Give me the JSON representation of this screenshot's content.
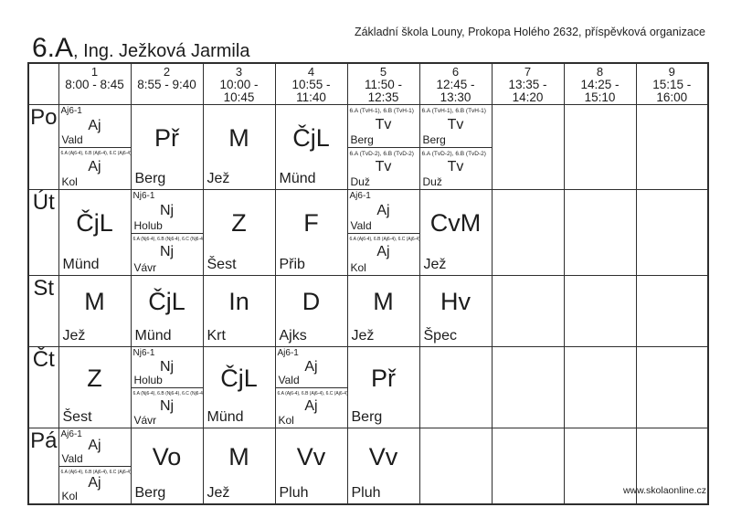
{
  "page": {
    "school_header": "Základní škola Louny, Prokopa Holého 2632, příspěvková organizace",
    "class_name": "6.A",
    "class_teacher_suffix": ", Ing. Ježková Jarmila",
    "website": "www.skolaonline.cz"
  },
  "timetable": {
    "periods": [
      {
        "num": "1",
        "time": "8:00 - 8:45"
      },
      {
        "num": "2",
        "time": "8:55 - 9:40"
      },
      {
        "num": "3",
        "time": "10:00 - 10:45"
      },
      {
        "num": "4",
        "time": "10:55 - 11:40"
      },
      {
        "num": "5",
        "time": "11:50 - 12:35"
      },
      {
        "num": "6",
        "time": "12:45 - 13:30"
      },
      {
        "num": "7",
        "time": "13:35 - 14:20"
      },
      {
        "num": "8",
        "time": "14:25 - 15:10"
      },
      {
        "num": "9",
        "time": "15:15 - 16:00"
      }
    ],
    "days": [
      {
        "label": "Po",
        "cells": [
          {
            "type": "split",
            "top": {
              "group": "Aj6-1",
              "subject": "Aj",
              "teacher": "Vald"
            },
            "bottom": {
              "group": "6.A (Aj6-4), 6.B (Aj6-4), 6.C (Aj6-4)",
              "subject": "Aj",
              "teacher": "Kol"
            }
          },
          {
            "type": "single",
            "subject": "Př",
            "teacher": "Berg"
          },
          {
            "type": "single",
            "subject": "M",
            "teacher": "Jež"
          },
          {
            "type": "single",
            "subject": "ČjL",
            "teacher": "Münd"
          },
          {
            "type": "split",
            "top": {
              "group": "6.A (TvH-1), 6.B (TvH-1)",
              "subject": "Tv",
              "teacher": "Berg"
            },
            "bottom": {
              "group": "6.A (TvD-2), 6.B (TvD-2)",
              "subject": "Tv",
              "teacher": "Duž"
            }
          },
          {
            "type": "split",
            "top": {
              "group": "6.A (TvH-1), 6.B (TvH-1)",
              "subject": "Tv",
              "teacher": "Berg"
            },
            "bottom": {
              "group": "6.A (TvD-2), 6.B (TvD-2)",
              "subject": "Tv",
              "teacher": "Duž"
            }
          },
          {
            "type": "empty"
          },
          {
            "type": "empty"
          },
          {
            "type": "empty"
          }
        ]
      },
      {
        "label": "Út",
        "cells": [
          {
            "type": "single",
            "subject": "ČjL",
            "teacher": "Münd"
          },
          {
            "type": "split",
            "top": {
              "group": "Nj6-1",
              "subject": "Nj",
              "teacher": "Holub"
            },
            "bottom": {
              "group": "6.A (Nj6-4), 6.B (Nj6-4), 6.C (Nj6-4)",
              "subject": "Nj",
              "teacher": "Vávr"
            }
          },
          {
            "type": "single",
            "subject": "Z",
            "teacher": "Šest"
          },
          {
            "type": "single",
            "subject": "F",
            "teacher": "Přib"
          },
          {
            "type": "split",
            "top": {
              "group": "Aj6-1",
              "subject": "Aj",
              "teacher": "Vald"
            },
            "bottom": {
              "group": "6.A (Aj6-4), 6.B (Aj6-4), 6.C (Aj6-4)",
              "subject": "Aj",
              "teacher": "Kol"
            }
          },
          {
            "type": "single",
            "subject": "CvM",
            "teacher": "Jež"
          },
          {
            "type": "empty"
          },
          {
            "type": "empty"
          },
          {
            "type": "empty"
          }
        ]
      },
      {
        "label": "St",
        "cells": [
          {
            "type": "single",
            "subject": "M",
            "teacher": "Jež"
          },
          {
            "type": "single",
            "subject": "ČjL",
            "teacher": "Münd"
          },
          {
            "type": "single",
            "subject": "In",
            "teacher": "Krt"
          },
          {
            "type": "single",
            "subject": "D",
            "teacher": "Ajks"
          },
          {
            "type": "single",
            "subject": "M",
            "teacher": "Jež"
          },
          {
            "type": "single",
            "subject": "Hv",
            "teacher": "Špec"
          },
          {
            "type": "empty"
          },
          {
            "type": "empty"
          },
          {
            "type": "empty"
          }
        ]
      },
      {
        "label": "Čt",
        "cells": [
          {
            "type": "single",
            "subject": "Z",
            "teacher": "Šest"
          },
          {
            "type": "split",
            "top": {
              "group": "Nj6-1",
              "subject": "Nj",
              "teacher": "Holub"
            },
            "bottom": {
              "group": "6.A (Nj6-4), 6.B (Nj6-4), 6.C (Nj6-4)",
              "subject": "Nj",
              "teacher": "Vávr"
            }
          },
          {
            "type": "single",
            "subject": "ČjL",
            "teacher": "Münd"
          },
          {
            "type": "split",
            "top": {
              "group": "Aj6-1",
              "subject": "Aj",
              "teacher": "Vald"
            },
            "bottom": {
              "group": "6.A (Aj6-4), 6.B (Aj6-4), 6.C (Aj6-4)",
              "subject": "Aj",
              "teacher": "Kol"
            }
          },
          {
            "type": "single",
            "subject": "Př",
            "teacher": "Berg"
          },
          {
            "type": "empty"
          },
          {
            "type": "empty"
          },
          {
            "type": "empty"
          },
          {
            "type": "empty"
          }
        ]
      },
      {
        "label": "Pá",
        "cells": [
          {
            "type": "split",
            "top": {
              "group": "Aj6-1",
              "subject": "Aj",
              "teacher": "Vald"
            },
            "bottom": {
              "group": "6.A (Aj6-4), 6.B (Aj6-4), 6.C (Aj6-4)",
              "subject": "Aj",
              "teacher": "Kol"
            }
          },
          {
            "type": "single",
            "subject": "Vo",
            "teacher": "Berg"
          },
          {
            "type": "single",
            "subject": "M",
            "teacher": "Jež"
          },
          {
            "type": "single",
            "subject": "Vv",
            "teacher": "Pluh"
          },
          {
            "type": "single",
            "subject": "Vv",
            "teacher": "Pluh"
          },
          {
            "type": "empty"
          },
          {
            "type": "empty"
          },
          {
            "type": "empty"
          },
          {
            "type": "empty"
          }
        ]
      }
    ]
  }
}
